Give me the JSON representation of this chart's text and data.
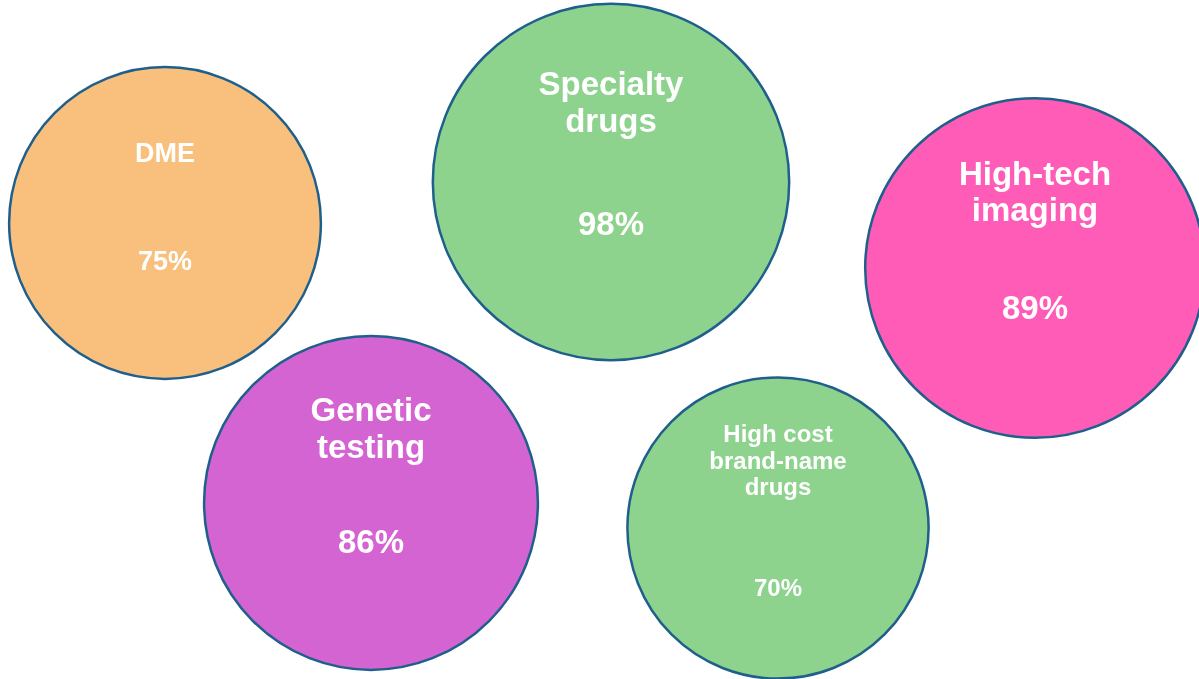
{
  "chart_data": {
    "type": "other",
    "categories": [
      "DME",
      "Specialty drugs",
      "High-tech imaging",
      "Genetic testing",
      "High cost brand-name drugs"
    ],
    "values": [
      75,
      98,
      89,
      86,
      70
    ],
    "value_labels": [
      "75%",
      "98%",
      "89%",
      "86%",
      "70%"
    ],
    "colors": [
      "#f8c07c",
      "#8dd38e",
      "#ff5cb8",
      "#d464d2",
      "#8dd38e"
    ]
  }
}
